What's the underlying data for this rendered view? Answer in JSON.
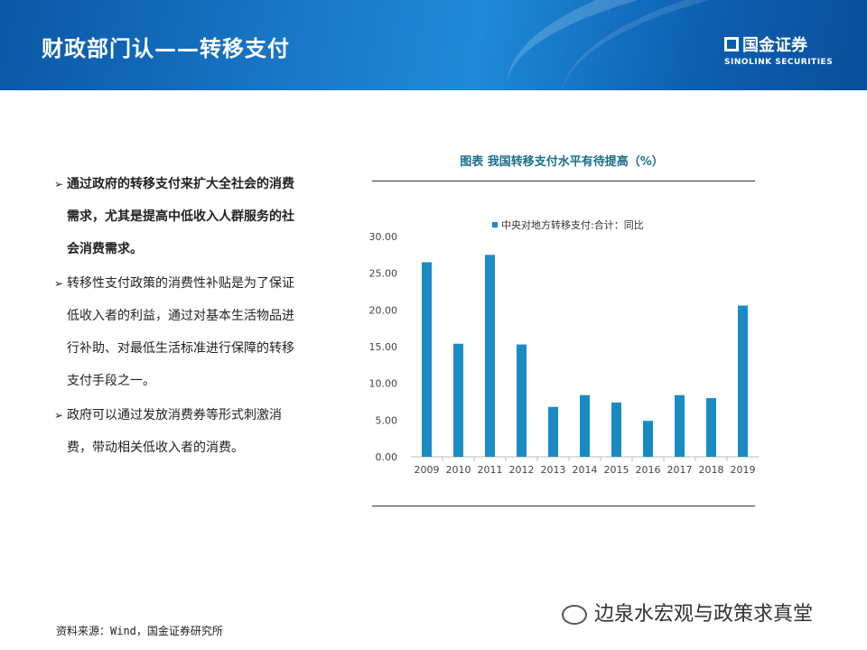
{
  "header": {
    "title": "财政部门认——转移支付",
    "logo_cn": "国金证券",
    "logo_en": "SINOLINK SECURITIES"
  },
  "bullets": [
    {
      "text": "通过政府的转移支付来扩大全社会的消费需求，尤其是提高中低收入人群服务的社会消费需求。",
      "bold": true
    },
    {
      "text": "转移性支付政策的消费性补贴是为了保证低收入者的利益，通过对基本生活物品进行补助、对最低生活标准进行保障的转移支付手段之一。",
      "bold": false
    },
    {
      "text": "政府可以通过发放消费券等形式刺激消费，带动相关低收入者的消费。",
      "bold": false
    }
  ],
  "source": "资料来源：Wind，国金证券研究所",
  "watermark": "边泉水宏观与政策求真堂",
  "chart_data": {
    "type": "bar",
    "title": "图表  我国转移支付水平有待提高（%）",
    "categories": [
      "2009",
      "2010",
      "2011",
      "2012",
      "2013",
      "2014",
      "2015",
      "2016",
      "2017",
      "2018",
      "2019"
    ],
    "series": [
      {
        "name": "中央对地方转移支付:合计：同比",
        "values": [
          26.5,
          15.4,
          27.5,
          15.3,
          6.8,
          8.4,
          7.4,
          4.9,
          8.4,
          8.0,
          20.6
        ],
        "color": "#1a8cc4"
      }
    ],
    "yticks": [
      "0.00",
      "5.00",
      "10.00",
      "15.00",
      "20.00",
      "25.00",
      "30.00"
    ],
    "ylim": [
      0,
      30
    ],
    "legend": "top",
    "grid": false
  }
}
